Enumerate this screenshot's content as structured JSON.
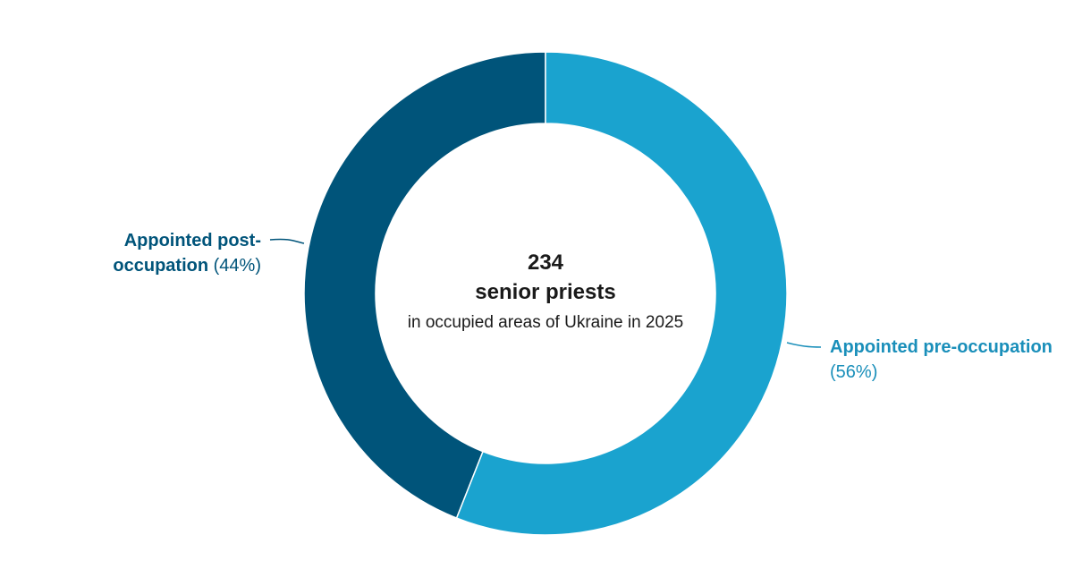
{
  "chart_data": {
    "type": "donut",
    "center_value": 234,
    "center_title": "senior priests",
    "center_subtitle": "in occupied areas of Ukraine in 2025",
    "categories": [
      "Appointed pre-occupation",
      "Appointed post-occupation"
    ],
    "values": [
      56,
      44
    ],
    "value_labels": [
      "(56%)",
      "(44%)"
    ],
    "colors": [
      "#1aa3cf",
      "#00547a"
    ],
    "label_colors": [
      "#1a8fba",
      "#00547a"
    ]
  }
}
